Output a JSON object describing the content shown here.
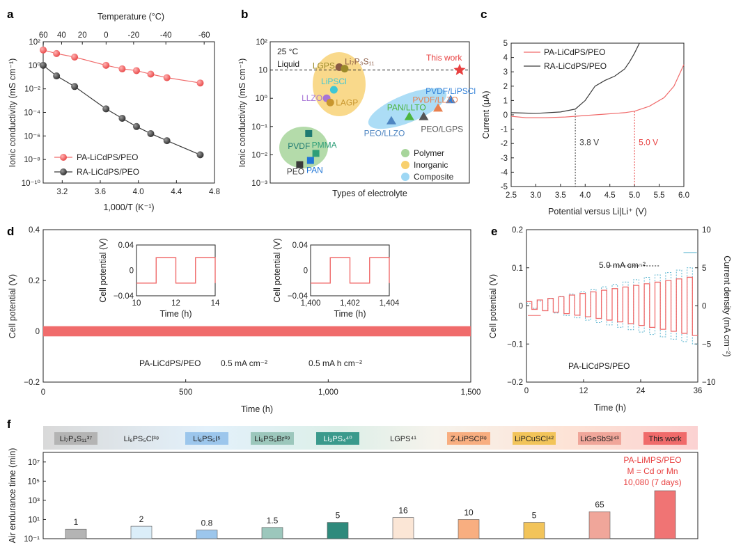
{
  "panels": {
    "a": "a",
    "b": "b",
    "c": "c",
    "d": "d",
    "e": "e",
    "f": "f"
  },
  "colors": {
    "red": "#f06b6b",
    "red_dark": "#e8534f",
    "dark": "#3a3a3a",
    "polymer": "#9bcf8e",
    "inorganic": "#f6c75e",
    "composite": "#8fd0f0"
  },
  "chart_data": [
    {
      "id": "a",
      "type": "line",
      "title": "",
      "xlabel": "1,000/T (K⁻¹)",
      "ylabel": "Ionic conductivity (mS cm⁻¹)",
      "top_xlabel": "Temperature (°C)",
      "xlim": [
        3.0,
        4.8
      ],
      "ylim_log10": [
        -10,
        2
      ],
      "x_ticks": [
        "3.2",
        "3.6",
        "4.0",
        "4.4",
        "4.8"
      ],
      "x_tick_values": [
        3.2,
        3.6,
        4.0,
        4.4,
        4.8
      ],
      "top_ticks": [
        "60",
        "40",
        "20",
        "0",
        "-20",
        "-40",
        "-60"
      ],
      "top_tick_values": [
        60,
        40,
        20,
        0,
        -20,
        -40,
        -60
      ],
      "y_ticks": [
        "10²",
        "10⁰",
        "10⁻²",
        "10⁻⁴",
        "10⁻⁶",
        "10⁻⁸",
        "10⁻¹⁰"
      ],
      "y_tick_exps": [
        2,
        0,
        -2,
        -4,
        -6,
        -8,
        -10
      ],
      "series": [
        {
          "name": "PA-LiCdPS/PEO",
          "color": "#f06b6b",
          "x": [
            3.0,
            3.14,
            3.33,
            3.66,
            3.83,
            3.98,
            4.13,
            4.3,
            4.65
          ],
          "log10_y": [
            1.3,
            1.0,
            0.7,
            0.0,
            -0.3,
            -0.45,
            -0.75,
            -1.05,
            -1.5
          ]
        },
        {
          "name": "RA-LiCdPS/PEO",
          "color": "#3a3a3a",
          "x": [
            3.0,
            3.14,
            3.33,
            3.66,
            3.83,
            3.98,
            4.13,
            4.3,
            4.65
          ],
          "log10_y": [
            0.0,
            -0.9,
            -1.8,
            -3.7,
            -4.5,
            -5.2,
            -5.8,
            -6.4,
            -7.6
          ]
        }
      ]
    },
    {
      "id": "b",
      "type": "scatter",
      "xlabel": "Types of electrolyte",
      "ylabel": "Ionic conductivity (mS cm⁻¹)",
      "ylim_log10": [
        -3,
        2
      ],
      "y_ticks": [
        "10²",
        "10",
        "10⁰",
        "10⁻¹",
        "10⁻²",
        "10⁻³"
      ],
      "y_tick_exps": [
        2,
        1,
        0,
        -1,
        -2,
        -3
      ],
      "note_temp": "25 °C",
      "note_state": "Liquid",
      "liquid_line_log10": 1,
      "this_work_label": "This work",
      "legend": [
        "Polymer",
        "Inorganic",
        "Composite"
      ],
      "points": [
        {
          "label": "Li₇P₃S₁₁",
          "group": "Inorganic",
          "shape": "circle",
          "color": "#8a5a44",
          "xpos": 0.33,
          "log10_y": 1.1
        },
        {
          "label": "LGPS",
          "group": "Inorganic",
          "shape": "circle",
          "color": "#9b8a2a",
          "xpos": 0.36,
          "log10_y": 1.05
        },
        {
          "label": "LiPSCl",
          "group": "Inorganic",
          "shape": "circle",
          "color": "#3ec7d5",
          "xpos": 0.3,
          "log10_y": 0.3
        },
        {
          "label": "LLZO",
          "group": "Inorganic",
          "shape": "circle",
          "color": "#a774d6",
          "xpos": 0.26,
          "log10_y": 0.0
        },
        {
          "label": "LAGP",
          "group": "Inorganic",
          "shape": "circle",
          "color": "#c8962e",
          "xpos": 0.28,
          "log10_y": -0.15
        },
        {
          "label": "PVDF/LiPSCl",
          "group": "Composite",
          "shape": "triangle",
          "color": "#2f7fd8",
          "xpos": 0.95,
          "log10_y": -0.05
        },
        {
          "label": "PVDF/LLZO",
          "group": "Composite",
          "shape": "triangle",
          "color": "#e8804f",
          "xpos": 0.88,
          "log10_y": -0.35
        },
        {
          "label": "PAN/LLTO",
          "group": "Composite",
          "shape": "triangle",
          "color": "#4cb53f",
          "xpos": 0.72,
          "log10_y": -0.65
        },
        {
          "label": "PEO/LGPS",
          "group": "Composite",
          "shape": "triangle",
          "color": "#555555",
          "xpos": 0.8,
          "log10_y": -0.65
        },
        {
          "label": "PEO/LLZO",
          "group": "Composite",
          "shape": "triangle",
          "color": "#4f86c2",
          "xpos": 0.62,
          "log10_y": -0.8
        },
        {
          "label": "PVDF",
          "group": "Polymer",
          "shape": "square",
          "color": "#1f7a72",
          "xpos": 0.16,
          "log10_y": -1.25
        },
        {
          "label": "PMMA",
          "group": "Polymer",
          "shape": "square",
          "color": "#2e9e78",
          "xpos": 0.2,
          "log10_y": -1.95
        },
        {
          "label": "PAN",
          "group": "Polymer",
          "shape": "square",
          "color": "#2176d6",
          "xpos": 0.17,
          "log10_y": -2.2
        },
        {
          "label": "PEO",
          "group": "Polymer",
          "shape": "square",
          "color": "#3a3a3a",
          "xpos": 0.11,
          "log10_y": -2.35
        },
        {
          "label": "This work",
          "group": "This work",
          "shape": "star",
          "color": "#e84040",
          "xpos": 1.0,
          "log10_y": 1.0
        }
      ]
    },
    {
      "id": "c",
      "type": "line",
      "xlabel": "Potential versus Li|Li⁺ (V)",
      "ylabel": "Current (μA)",
      "xlim": [
        2.5,
        6.0
      ],
      "ylim": [
        -5,
        5
      ],
      "x_ticks": [
        "2.5",
        "3.0",
        "3.5",
        "4.0",
        "4.5",
        "5.0",
        "5.5",
        "6.0"
      ],
      "x_tick_values": [
        2.5,
        3.0,
        3.5,
        4.0,
        4.5,
        5.0,
        5.5,
        6.0
      ],
      "y_ticks": [
        "5",
        "4",
        "3",
        "2",
        "1",
        "0",
        "-1",
        "-2",
        "-3",
        "-4",
        "-5"
      ],
      "y_tick_values": [
        5,
        4,
        3,
        2,
        1,
        0,
        -1,
        -2,
        -3,
        -4,
        -5
      ],
      "markers": [
        {
          "v": 3.8,
          "label": "3.8 V",
          "color": "#3a3a3a"
        },
        {
          "v": 5.0,
          "label": "5.0 V",
          "color": "#e84040"
        }
      ],
      "series": [
        {
          "name": "PA-LiCdPS/PEO",
          "color": "#f06b6b",
          "x": [
            2.5,
            2.8,
            3.2,
            3.6,
            4.0,
            4.4,
            4.8,
            5.0,
            5.3,
            5.6,
            5.8,
            6.0
          ],
          "y": [
            -0.1,
            -0.2,
            -0.2,
            -0.15,
            -0.05,
            0.05,
            0.15,
            0.25,
            0.6,
            1.2,
            2.0,
            3.5
          ]
        },
        {
          "name": "RA-LiCdPS/PEO",
          "color": "#3a3a3a",
          "x": [
            2.5,
            3.0,
            3.5,
            3.8,
            4.0,
            4.2,
            4.4,
            4.6,
            4.8,
            4.9,
            5.0,
            5.1
          ],
          "y": [
            0.15,
            0.1,
            0.2,
            0.4,
            1.0,
            2.0,
            2.4,
            2.7,
            3.2,
            3.7,
            4.3,
            5.0
          ]
        }
      ]
    },
    {
      "id": "d",
      "type": "line",
      "xlabel": "Time (h)",
      "ylabel": "Cell potential (V)",
      "xlim": [
        0,
        1500
      ],
      "ylim": [
        -0.2,
        0.4
      ],
      "x_ticks": [
        "0",
        "500",
        "1,000",
        "1,500"
      ],
      "x_tick_values": [
        0,
        500,
        1000,
        1500
      ],
      "y_ticks": [
        "0.4",
        "0.2",
        "0",
        "−0.2"
      ],
      "y_tick_values": [
        0.4,
        0.2,
        0,
        -0.2
      ],
      "band_amplitude": 0.02,
      "annotation": {
        "material": "PA-LiCdPS/PEO",
        "current": "0.5 mA cm⁻²",
        "capacity": "0.5 mA h cm⁻²"
      },
      "insets": [
        {
          "xlim": [
            10,
            14
          ],
          "x_ticks": [
            "10",
            "12",
            "14"
          ],
          "ylim": [
            -0.04,
            0.04
          ],
          "y_ticks": [
            "0.04",
            "0",
            "−0.04"
          ],
          "xlabel": "Time (h)",
          "ylabel": "Cell potential (V)",
          "steps": [
            [
              10,
              -0.02
            ],
            [
              11,
              0.02
            ],
            [
              12,
              -0.02
            ],
            [
              13,
              0.02
            ],
            [
              14,
              -0.02
            ]
          ]
        },
        {
          "xlim": [
            1400,
            1404
          ],
          "x_ticks": [
            "1,400",
            "1,402",
            "1,404"
          ],
          "ylim": [
            -0.04,
            0.04
          ],
          "y_ticks": [
            "0.04",
            "0",
            "−0.04"
          ],
          "xlabel": "Time (h)",
          "ylabel": "Cell potential (V)",
          "steps": [
            [
              1400,
              -0.02
            ],
            [
              1401,
              0.02
            ],
            [
              1402,
              -0.02
            ],
            [
              1403,
              0.02
            ],
            [
              1404,
              -0.02
            ]
          ]
        }
      ]
    },
    {
      "id": "e",
      "type": "line",
      "xlabel": "Time (h)",
      "ylabel": "Cell potential (V)",
      "y2label": "Current density (mA cm⁻²)",
      "xlim": [
        0,
        36
      ],
      "ylim": [
        -0.2,
        0.2
      ],
      "y2lim": [
        -10,
        10
      ],
      "x_ticks": [
        "0",
        "12",
        "24",
        "36"
      ],
      "x_tick_values": [
        0,
        12,
        24,
        36
      ],
      "y_ticks": [
        "0.2",
        "0.1",
        "0",
        "−0.1",
        "−0.2"
      ],
      "y_tick_values": [
        0.2,
        0.1,
        0,
        -0.1,
        -0.2
      ],
      "y2_ticks": [
        "10",
        "5",
        "0",
        "−5",
        "−10"
      ],
      "y2_tick_values": [
        10,
        5,
        0,
        -5,
        -10
      ],
      "annotation": "5.0 mA cm⁻²",
      "material": "PA-LiCdPS/PEO",
      "cycles": 16,
      "max_potential": 0.075,
      "max_current_density": 5.0
    },
    {
      "id": "f",
      "type": "bar",
      "ylabel": "Air endurance time (min)",
      "ylim_log10": [
        -1,
        8
      ],
      "y_ticks": [
        "10⁷",
        "10⁵",
        "10³",
        "10¹",
        "10⁻¹"
      ],
      "y_tick_exps": [
        7,
        5,
        3,
        1,
        -1
      ],
      "categories": [
        "Li₇P₃S₁₁³⁷",
        "Li₆PS₅Cl³⁸",
        "Li₆PS₅I⁵",
        "Li₆PS₅Br³⁹",
        "Li₃PS₄⁴⁰",
        "LGPS⁴¹",
        "Z-LiPSCl³⁸",
        "LiPCuSCl⁴²",
        "LiGeSbSI⁴³",
        "This work"
      ],
      "values": [
        1,
        2,
        0.8,
        1.5,
        5,
        16,
        10,
        5,
        65,
        10080
      ],
      "value_labels": [
        "1",
        "2",
        "0.8",
        "1.5",
        "5",
        "16",
        "10",
        "5",
        "65",
        ""
      ],
      "bar_colors": [
        "#b4b4b4",
        "#dbeef9",
        "#9cc6ec",
        "#9cc7bc",
        "#2f8a7c",
        "#fbe6d6",
        "#f8ae80",
        "#f2c45a",
        "#f0a69a",
        "#f07474"
      ],
      "cat_box_colors": [
        "#b4b4b4",
        "#ffffff",
        "#9cc6ec",
        "#9cc7bc",
        "#3a9a8c",
        "#fbe6d6",
        "#f8ae80",
        "#f2c45a",
        "#f0a69a",
        "#f06b6b"
      ],
      "this_work_text": [
        "PA-LiMPS/PEO",
        "M = Cd or Mn",
        "10,080 (7 days)"
      ]
    }
  ]
}
